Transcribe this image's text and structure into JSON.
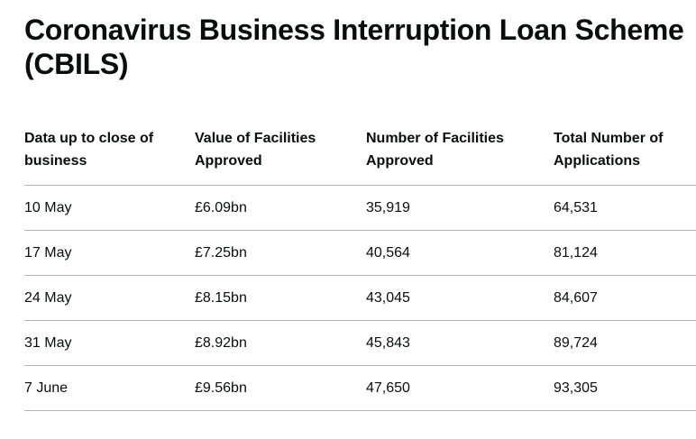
{
  "page": {
    "title": "Coronavirus Business Interruption Loan Scheme (CBILS)"
  },
  "table": {
    "headers": [
      "Data up to close of business",
      "Value of Facilities Approved",
      "Number of Facilities Approved",
      "Total Number of Applications"
    ],
    "rows": [
      [
        "10 May",
        "£6.09bn",
        "35,919",
        "64,531"
      ],
      [
        "17 May",
        "£7.25bn",
        "40,564",
        "81,124"
      ],
      [
        "24 May",
        "£8.15bn",
        "43,045",
        "84,607"
      ],
      [
        "31 May",
        "£8.92bn",
        "45,843",
        "89,724"
      ],
      [
        "7 June",
        "£9.56bn",
        "47,650",
        "93,305"
      ]
    ]
  },
  "colors": {
    "text": "#0b0c0c",
    "border": "#b1b4b6",
    "background": "#ffffff"
  }
}
